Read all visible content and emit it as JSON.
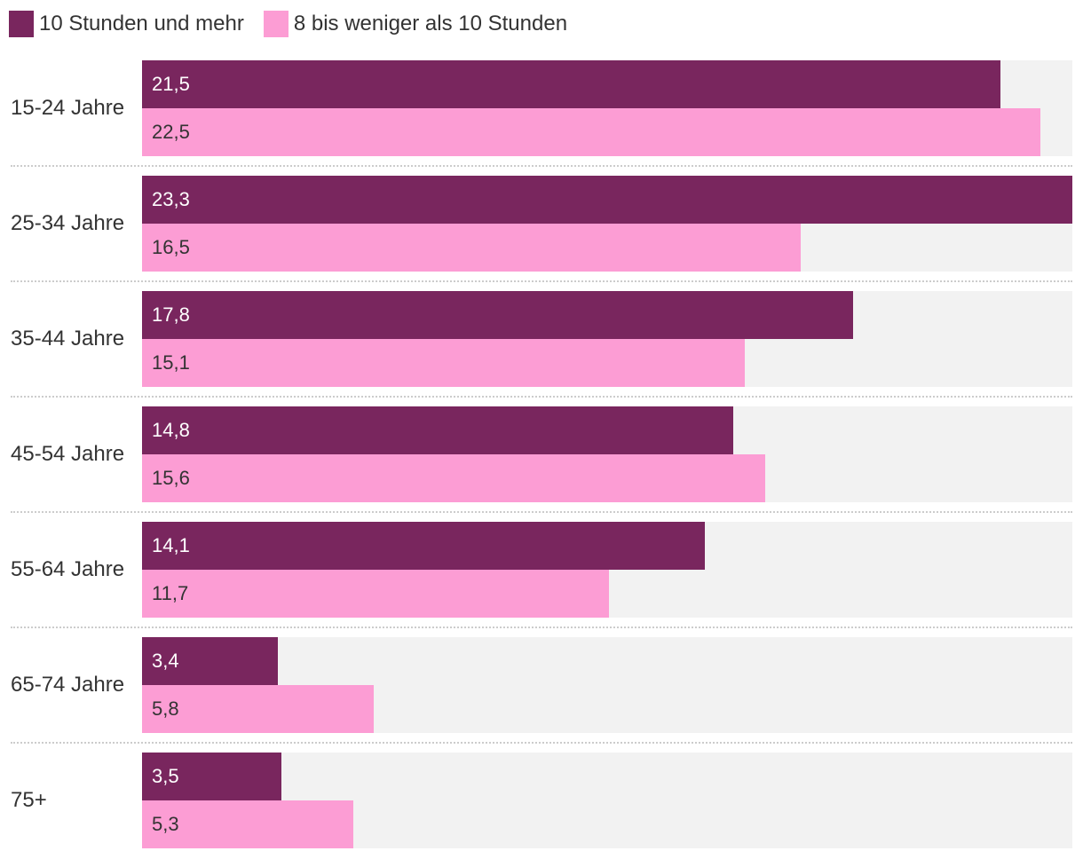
{
  "chart_data": {
    "type": "bar",
    "orientation": "horizontal",
    "categories": [
      "15-24 Jahre",
      "25-34 Jahre",
      "35-44 Jahre",
      "45-54 Jahre",
      "55-64 Jahre",
      "65-74 Jahre",
      "75+"
    ],
    "series": [
      {
        "name": "10 Stunden und mehr",
        "color": "#79265e",
        "label_color": "#ffffff",
        "values": [
          21.5,
          23.3,
          17.8,
          14.8,
          14.1,
          3.4,
          3.5
        ],
        "labels": [
          "21,5",
          "23,3",
          "17,8",
          "14,8",
          "14,1",
          "3,4",
          "3,5"
        ]
      },
      {
        "name": "8 bis weniger als 10 Stunden",
        "color": "#fc9dd4",
        "label_color": "#333333",
        "values": [
          22.5,
          16.5,
          15.1,
          15.6,
          11.7,
          5.8,
          5.3
        ],
        "labels": [
          "22,5",
          "16,5",
          "15,1",
          "15,6",
          "11,7",
          "5,8",
          "5,3"
        ]
      }
    ],
    "xlim": [
      0,
      23.3
    ],
    "legend_position": "top-left",
    "track_color": "#f2f2f2",
    "title": "",
    "xlabel": "",
    "ylabel": ""
  }
}
